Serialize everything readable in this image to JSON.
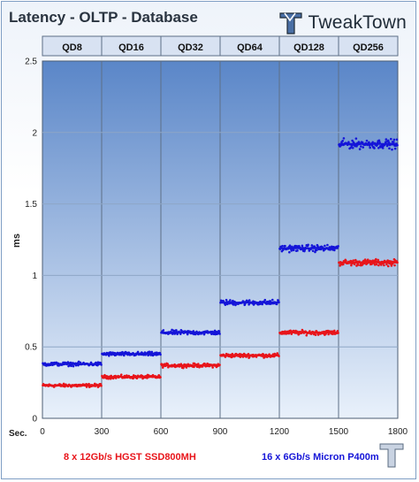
{
  "chart_data": {
    "type": "scatter",
    "title": "Latency - OLTP - Database",
    "ylabel": "ms",
    "xlabel": "Sec.",
    "xlim": [
      0,
      1800
    ],
    "ylim": [
      0,
      2.5
    ],
    "x_ticks": [
      "0",
      "300",
      "600",
      "900",
      "1200",
      "1500",
      "1800"
    ],
    "y_ticks": [
      "0",
      "0.5",
      "1",
      "1.5",
      "2",
      "2.5"
    ],
    "grid": true,
    "top_categories": [
      "QD8",
      "QD16",
      "QD32",
      "QD64",
      "QD128",
      "QD256"
    ],
    "legend_placement": "bottom",
    "series": [
      {
        "name": "8 x 12Gb/s HGST SSD800MH",
        "color": "#e8141a",
        "segments": [
          {
            "x_start": 0,
            "x_end": 300,
            "y": 0.23
          },
          {
            "x_start": 300,
            "x_end": 600,
            "y": 0.29
          },
          {
            "x_start": 600,
            "x_end": 900,
            "y": 0.37
          },
          {
            "x_start": 900,
            "x_end": 1200,
            "y": 0.44
          },
          {
            "x_start": 1200,
            "x_end": 1500,
            "y": 0.6
          },
          {
            "x_start": 1500,
            "x_end": 1800,
            "y": 1.09
          }
        ]
      },
      {
        "name": "16 x 6Gb/s Micron P400m",
        "color": "#1414d8",
        "segments": [
          {
            "x_start": 0,
            "x_end": 300,
            "y": 0.38
          },
          {
            "x_start": 300,
            "x_end": 600,
            "y": 0.45
          },
          {
            "x_start": 600,
            "x_end": 900,
            "y": 0.6
          },
          {
            "x_start": 900,
            "x_end": 1200,
            "y": 0.81
          },
          {
            "x_start": 1200,
            "x_end": 1500,
            "y": 1.19
          },
          {
            "x_start": 1500,
            "x_end": 1800,
            "y": 1.92
          }
        ]
      }
    ]
  },
  "logo": {
    "text": "TweakTown"
  },
  "colors": {
    "plot_top": "#5a86c8",
    "plot_bottom": "#e9f1fb",
    "grid": "#5d6f86",
    "band": "#d8e2f2"
  }
}
